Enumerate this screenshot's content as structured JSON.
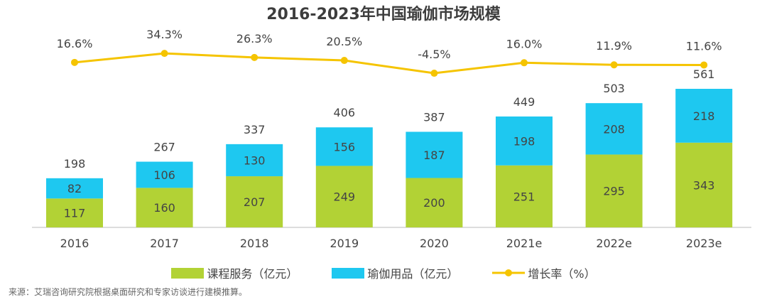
{
  "chart_data": {
    "type": "bar",
    "stacked": true,
    "title": "2016-2023年中国瑜伽市场规模",
    "categories": [
      "2016",
      "2017",
      "2018",
      "2019",
      "2020",
      "2021e",
      "2022e",
      "2023e"
    ],
    "series": [
      {
        "name": "课程服务（亿元）",
        "type": "bar",
        "color": "#b2d235",
        "values": [
          117,
          160,
          207,
          249,
          200,
          251,
          295,
          343
        ]
      },
      {
        "name": "瑜伽用品（亿元）",
        "type": "bar",
        "color": "#1ec8f0",
        "values": [
          82,
          106,
          130,
          156,
          187,
          198,
          208,
          218
        ]
      },
      {
        "name": "增长率（%）",
        "type": "line",
        "color": "#f5c400",
        "values": [
          16.6,
          34.3,
          26.3,
          20.5,
          -4.5,
          16.0,
          11.9,
          11.6
        ],
        "labels": [
          "16.6%",
          "34.3%",
          "26.3%",
          "20.5%",
          "-4.5%",
          "16.0%",
          "11.9%",
          "11.6%"
        ]
      }
    ],
    "totals": [
      198,
      267,
      337,
      406,
      387,
      449,
      503,
      561
    ],
    "legend_position": "bottom",
    "grid": false
  },
  "source": "来源：艾瑞咨询研究院根据桌面研究和专家访谈进行建模推算。"
}
